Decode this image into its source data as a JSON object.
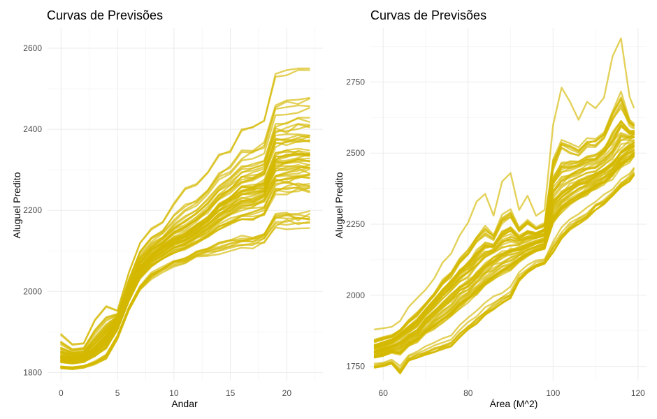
{
  "chart_data": [
    {
      "type": "line",
      "title": "Curvas de Previsões",
      "xlabel": "Andar",
      "ylabel": "Aluguel Predito",
      "xlim": [
        -1.2,
        23.2
      ],
      "ylim": [
        1780,
        2650
      ],
      "x_ticks": [
        0,
        5,
        10,
        15,
        20
      ],
      "y_ticks": [
        1800,
        2000,
        2200,
        2400,
        2600
      ],
      "x_tick_labels": [
        "0",
        "5",
        "10",
        "15",
        "20"
      ],
      "y_tick_labels": [
        "1800",
        "2000",
        "2200",
        "2400",
        "2600"
      ],
      "grid": true,
      "line_color": "#D4B800",
      "line_alpha": 0.65,
      "x": [
        0,
        1,
        2,
        3,
        4,
        5,
        6,
        7,
        8,
        9,
        10,
        11,
        12,
        13,
        14,
        15,
        16,
        17,
        18,
        19,
        20,
        21,
        22
      ],
      "series_count": 60,
      "summary": {
        "lower": [
          1808,
          1806,
          1810,
          1818,
          1830,
          1880,
          1950,
          2000,
          2030,
          2045,
          2060,
          2065,
          2080,
          2085,
          2090,
          2095,
          2100,
          2100,
          2110,
          2150,
          2150,
          2150,
          2150
        ],
        "center": [
          1840,
          1837,
          1840,
          1860,
          1890,
          1930,
          2000,
          2060,
          2090,
          2110,
          2130,
          2140,
          2160,
          2180,
          2210,
          2230,
          2250,
          2255,
          2265,
          2330,
          2335,
          2340,
          2340
        ],
        "upper": [
          1912,
          1880,
          1882,
          1950,
          1985,
          1960,
          2060,
          2140,
          2175,
          2190,
          2245,
          2285,
          2295,
          2330,
          2380,
          2385,
          2440,
          2450,
          2470,
          2600,
          2610,
          2610,
          2620
        ]
      }
    },
    {
      "type": "line",
      "title": "Curvas de Previsões",
      "xlabel": "Área (M^2)",
      "ylabel": "Aluguel Predito",
      "xlim": [
        57,
        122
      ],
      "ylim": [
        1700,
        2940
      ],
      "x_ticks": [
        60,
        80,
        100,
        120
      ],
      "y_ticks": [
        1750,
        2000,
        2250,
        2500,
        2750
      ],
      "x_tick_labels": [
        "60",
        "80",
        "100",
        "120"
      ],
      "y_tick_labels": [
        "1750",
        "2000",
        "2250",
        "2500",
        "2750"
      ],
      "grid": true,
      "line_color": "#D4B800",
      "line_alpha": 0.65,
      "x": [
        58,
        60,
        62,
        64,
        66,
        68,
        70,
        72,
        74,
        76,
        78,
        80,
        82,
        84,
        86,
        88,
        90,
        92,
        94,
        96,
        98,
        100,
        102,
        104,
        106,
        108,
        110,
        112,
        114,
        116,
        118,
        119
      ],
      "series_count": 60,
      "summary": {
        "lower": [
          1745,
          1750,
          1760,
          1725,
          1770,
          1780,
          1790,
          1800,
          1810,
          1820,
          1850,
          1880,
          1900,
          1930,
          1950,
          1970,
          1990,
          2050,
          2080,
          2100,
          2110,
          2150,
          2200,
          2230,
          2250,
          2270,
          2300,
          2320,
          2350,
          2380,
          2400,
          2420
        ],
        "center": [
          1810,
          1820,
          1830,
          1850,
          1870,
          1890,
          1930,
          1960,
          1990,
          2020,
          2050,
          2070,
          2100,
          2130,
          2150,
          2170,
          2180,
          2180,
          2190,
          2200,
          2210,
          2350,
          2380,
          2400,
          2420,
          2430,
          2440,
          2460,
          2480,
          2520,
          2540,
          2550
        ],
        "upper": [
          1880,
          1885,
          1890,
          1910,
          1960,
          1990,
          2020,
          2060,
          2120,
          2150,
          2210,
          2260,
          2330,
          2360,
          2280,
          2400,
          2430,
          2300,
          2350,
          2280,
          2300,
          2600,
          2730,
          2680,
          2620,
          2680,
          2660,
          2700,
          2840,
          2910,
          2700,
          2660
        ]
      }
    }
  ]
}
